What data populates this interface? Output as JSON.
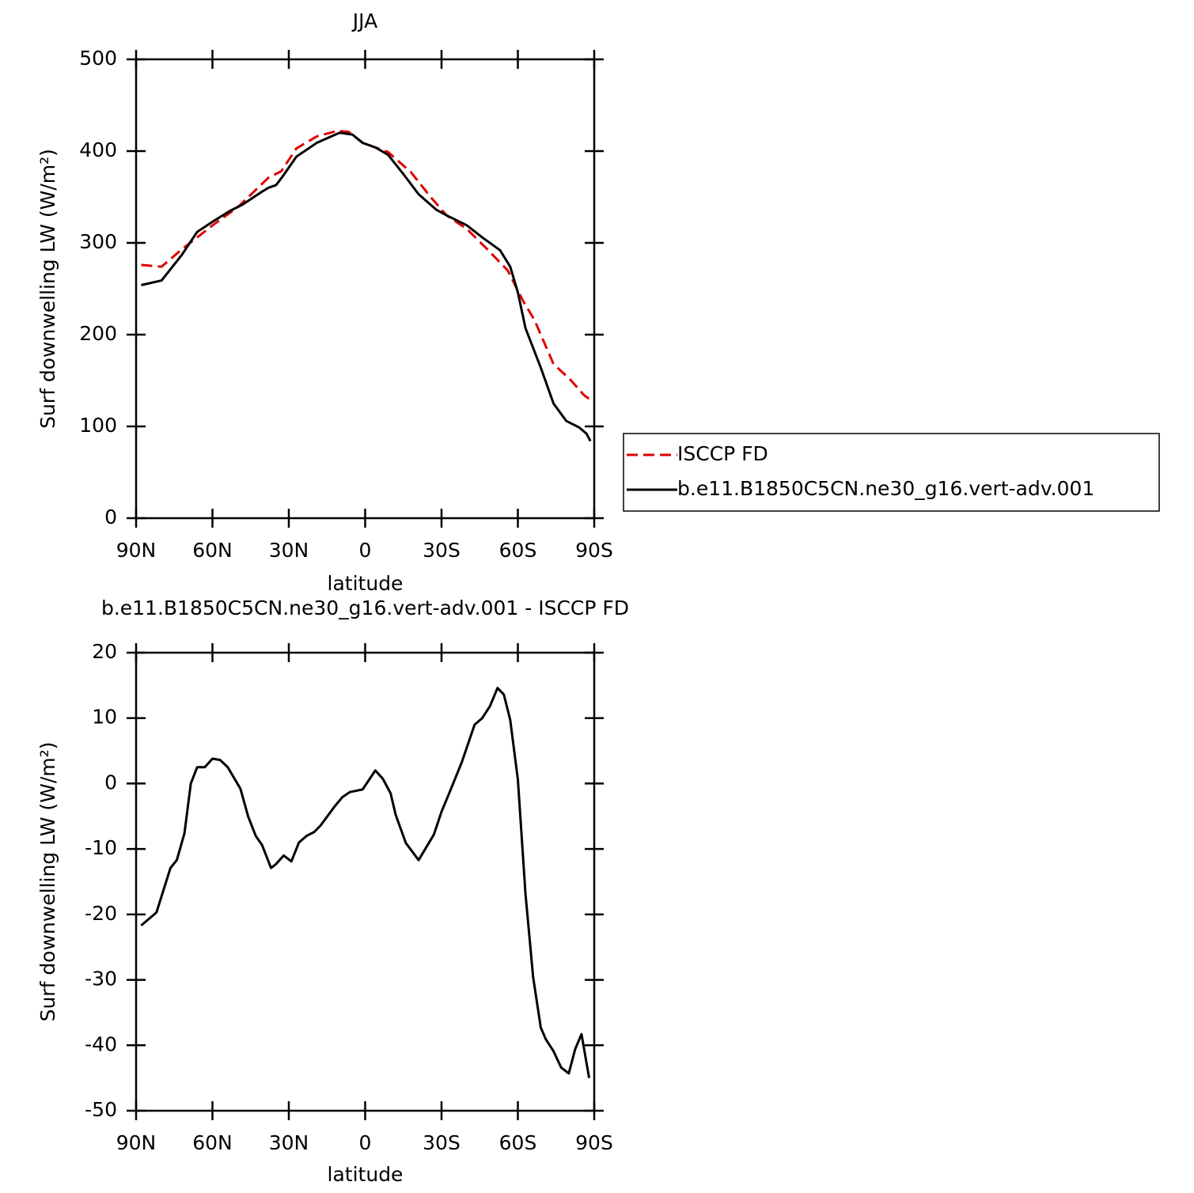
{
  "chart_data": [
    {
      "type": "line",
      "title": "JJA",
      "xlabel": "latitude",
      "ylabel": "Surf downwelling LW (W/m²)",
      "xlim": [
        90,
        -90
      ],
      "xticks": [
        {
          "value": 90,
          "label": "90N"
        },
        {
          "value": 60,
          "label": "60N"
        },
        {
          "value": 30,
          "label": "30N"
        },
        0,
        {
          "value": -30,
          "label": "30S"
        },
        {
          "value": -60,
          "label": "60S"
        },
        {
          "value": -90,
          "label": "90S"
        }
      ],
      "ylim": [
        0,
        500
      ],
      "yticks": [
        0,
        100,
        200,
        300,
        400,
        500
      ],
      "legend": "right",
      "series": [
        {
          "name": "ISCCP FD",
          "color": "#e00000",
          "linestyle": "dashed",
          "x": [
            88,
            80,
            72,
            60,
            50,
            44,
            38,
            33,
            27,
            19,
            11,
            6.5,
            1,
            -9,
            -18,
            -26,
            -32,
            -40,
            -48,
            -56,
            -62,
            -66.5,
            -74,
            -80.6,
            -86,
            -88.5
          ],
          "values": [
            276,
            274,
            293,
            319,
            339,
            355,
            371,
            378,
            403,
            416,
            422,
            421,
            409,
            399,
            377,
            349,
            330,
            315,
            293,
            270,
            237,
            216,
            168,
            151,
            134,
            129
          ]
        },
        {
          "name": "b.e11.B1850C5CN.ne30_g16.vert-adv.001",
          "color": "#000000",
          "linestyle": "solid",
          "x": [
            88,
            80,
            72,
            66,
            60,
            53,
            48,
            41,
            38,
            35,
            32,
            27,
            19,
            10,
            5,
            1,
            -4,
            -9,
            -15,
            -21,
            -28,
            -32,
            -40,
            -46,
            -53,
            -57,
            -60,
            -63,
            -69,
            -74,
            -79,
            -84,
            -87,
            -88.5
          ],
          "values": [
            254,
            259,
            287,
            312,
            323,
            335,
            342,
            355,
            360,
            363,
            374,
            394,
            409,
            420,
            418,
            409,
            404,
            396,
            375,
            353,
            336,
            330,
            319,
            306,
            292,
            274,
            246,
            207,
            164,
            125,
            106,
            99,
            92,
            84
          ]
        }
      ]
    },
    {
      "type": "line",
      "title": "b.e11.B1850C5CN.ne30_g16.vert-adv.001 - ISCCP FD",
      "xlabel": "latitude",
      "ylabel": "Surf downwelling LW (W/m²)",
      "xlim": [
        90,
        -90
      ],
      "xticks": [
        {
          "value": 90,
          "label": "90N"
        },
        {
          "value": 60,
          "label": "60N"
        },
        {
          "value": 30,
          "label": "30N"
        },
        0,
        {
          "value": -30,
          "label": "30S"
        },
        {
          "value": -60,
          "label": "60S"
        },
        {
          "value": -90,
          "label": "90S"
        }
      ],
      "ylim": [
        -50,
        20
      ],
      "yticks": [
        -50,
        -40,
        -30,
        -20,
        -10,
        0,
        10,
        20
      ],
      "color": "#000000",
      "x": [
        88,
        82,
        76.5,
        74,
        71,
        68.5,
        66,
        63,
        60,
        57,
        54,
        49,
        46,
        43,
        40.5,
        37,
        35,
        32,
        29,
        26,
        23,
        20,
        17.5,
        12,
        9,
        6,
        1,
        -4,
        -7,
        -10,
        -12,
        -16,
        -21,
        -27,
        -30,
        -33,
        -38,
        -43,
        -46,
        -49,
        -52,
        -54.5,
        -57,
        -60,
        -63,
        -66,
        -69,
        -71,
        -74,
        -77,
        -80,
        -82.5,
        -85,
        -88
      ],
      "values": [
        -21.7,
        -19.7,
        -12.9,
        -11.7,
        -7.6,
        0.0,
        2.5,
        2.5,
        3.8,
        3.6,
        2.5,
        -0.8,
        -5.0,
        -8.0,
        -9.4,
        -12.9,
        -12.3,
        -11.0,
        -11.9,
        -9.0,
        -8.0,
        -7.4,
        -6.4,
        -3.5,
        -2.1,
        -1.3,
        -0.9,
        2.0,
        0.7,
        -1.5,
        -4.8,
        -9.1,
        -11.7,
        -7.8,
        -4.3,
        -1.5,
        3.3,
        9.0,
        10.0,
        11.8,
        14.6,
        13.6,
        9.7,
        0.6,
        -16.9,
        -29.6,
        -37.3,
        -39.1,
        -40.9,
        -43.4,
        -44.3,
        -40.6,
        -38.3,
        -45.0
      ]
    }
  ]
}
